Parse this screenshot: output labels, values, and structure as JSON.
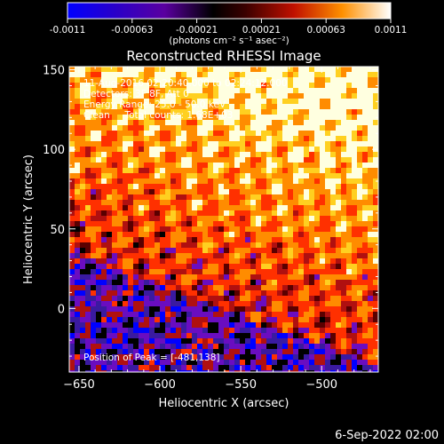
{
  "chart_data": {
    "type": "heatmap",
    "title": "Reconstructed RHESSI Image",
    "xlabel": "Heliocentric X (arcsec)",
    "ylabel": "Heliocentric Y (arcsec)",
    "xlim": [
      -656,
      -465
    ],
    "ylim": [
      -40,
      152
    ],
    "x_ticks": [
      -650,
      -600,
      -550,
      -500
    ],
    "y_ticks": [
      0,
      50,
      100,
      150
    ],
    "colorbar": {
      "min": -0.0011,
      "max": 0.0011,
      "ticks": [
        "-0.0011",
        "-0.00063",
        "-0.00021",
        "0.00021",
        "0.00063",
        "0.0011"
      ],
      "label": "(photons cm⁻² s⁻¹ asec⁻²)"
    },
    "annotations": [
      "11-Aug-2016 02:20:40.000 to 02:24:12.000",
      "Detectors: 3F 8F, Att 0",
      "Energy Range: 25.0 - 50.0 keV",
      "Clean     Total counts: 1.68E+03"
    ],
    "peak_text": "Position of Peak = [-481,138]",
    "peak_position": [
      -481,
      138
    ],
    "colors": [
      "#0000ff",
      "#3a1aa0",
      "#6a0dc0",
      "#000000",
      "#5a0000",
      "#b01010",
      "#ff3000",
      "#ff8c00",
      "#ffd020",
      "#ffffe0"
    ]
  },
  "footer_date": "6-Sep-2022 02:00"
}
